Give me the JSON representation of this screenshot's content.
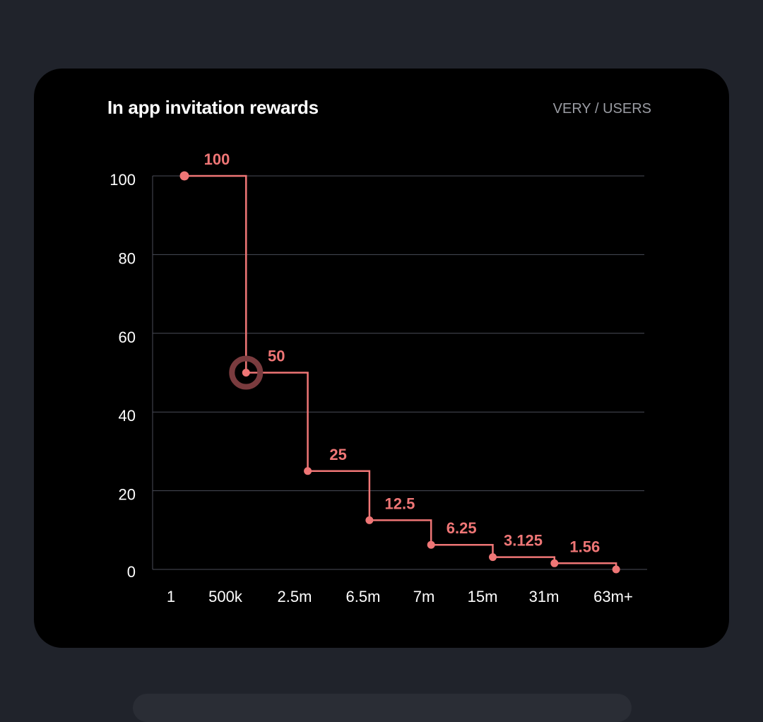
{
  "card": {
    "title": "In app invitation rewards",
    "unit": "VERY / USERS"
  },
  "colors": {
    "page_bg": "#20232b",
    "card_bg": "#000000",
    "series": "#ef7676",
    "grid": "#4a4d58",
    "highlight_ring": "#7a3b3e"
  },
  "chart_data": {
    "type": "line",
    "step": true,
    "title": "In app invitation rewards",
    "xlabel": "",
    "ylabel": "",
    "categories": [
      "1",
      "500k",
      "2.5m",
      "6.5m",
      "7m",
      "15m",
      "31m",
      "63m+"
    ],
    "values": [
      100,
      50,
      25,
      12.5,
      6.25,
      3.125,
      1.56,
      0
    ],
    "point_labels": [
      "100",
      "50",
      "25",
      "12.5",
      "6.25",
      "3.125",
      "1.56",
      ""
    ],
    "yticks": [
      "0",
      "20",
      "40",
      "60",
      "80",
      "100"
    ],
    "ylim": [
      0,
      100
    ],
    "grid": true,
    "highlighted_index": 1
  }
}
